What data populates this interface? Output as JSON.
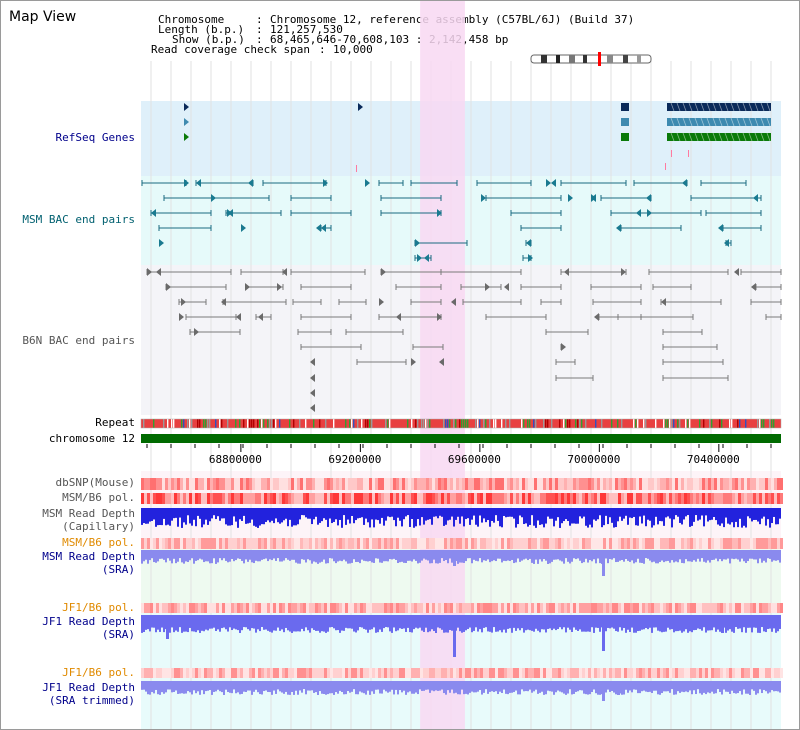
{
  "view_title": "Map View",
  "info": {
    "chromosome_key": "Chromosome",
    "chromosome_value": "Chromosome 12, reference assembly (C57BL/6J) (Build 37)",
    "length_key": "Length (b.p.)",
    "length_value": "121,257,530",
    "show_key": "Show (b.p.)",
    "show_value": "68,465,646-70,608,103 : 2,142,458 bp",
    "coverage_key": "Read coverage check span",
    "coverage_value": "10,000"
  },
  "tracks": {
    "refseq": "RefSeq Genes",
    "msm_bac": "MSM BAC end pairs",
    "b6n_bac": "B6N BAC end pairs",
    "repeat": "Repeat",
    "chromosome": "chromosome 12",
    "dbsnp": "dbSNP(Mouse)",
    "msm_b6_pol": "MSM/B6 pol.",
    "msm_depth_cap_1": "MSM Read Depth",
    "msm_depth_cap_2": "(Capillary)",
    "msm_b6_pol_2": "MSM/B6 pol.",
    "msm_depth_sra_1": "MSM Read Depth",
    "msm_depth_sra_2": "(SRA)",
    "jf1_b6_pol": "JF1/B6 pol.",
    "jf1_depth_sra_1": "JF1 Read Depth",
    "jf1_depth_sra_2": "(SRA)",
    "jf1_b6_pol_2": "JF1/B6 pol.",
    "jf1_depth_trim_1": "JF1 Read Depth",
    "jf1_depth_trim_2": "(SRA trimmed)"
  },
  "axis_ticks": [
    {
      "label": "68800000",
      "value": 68800000
    },
    {
      "label": "69200000",
      "value": 69200000
    },
    {
      "label": "69600000",
      "value": 69600000
    },
    {
      "label": "70000000",
      "value": 70000000
    },
    {
      "label": "70400000",
      "value": 70400000
    }
  ],
  "view_range": [
    68465646,
    70608103
  ],
  "highlight_range": [
    69400000,
    69550000
  ],
  "colors": {
    "refseq_bg": "#dff0fa",
    "msm_bg": "#e6fafa",
    "b6n_bg": "#f4f4f8",
    "highlight": "#f8d8f2",
    "chromosome_bar": "#006a00",
    "label_blue": "#00008b",
    "label_teal": "#006070",
    "label_gray": "#555555",
    "label_orange": "#e08a00"
  }
}
